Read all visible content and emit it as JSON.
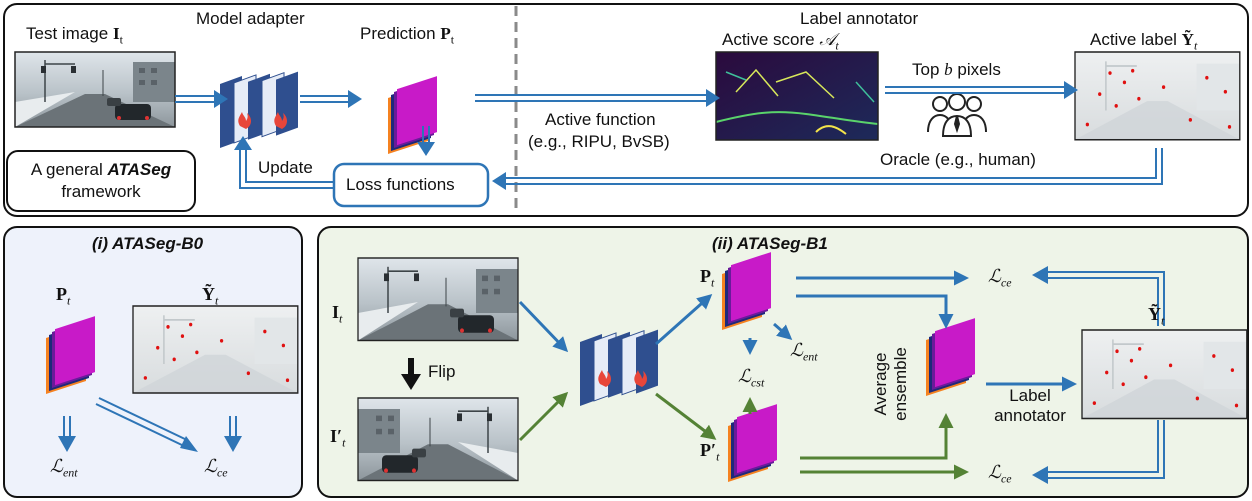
{
  "top": {
    "test_image": "Test image ",
    "test_image_sym": "I",
    "test_image_sub": "t",
    "model_adapter": "Model adapter",
    "prediction": "Prediction ",
    "prediction_sym": "P",
    "prediction_sub": "t",
    "label_annotator": "Label annotator",
    "active_score": "Active score ",
    "active_score_sym": "𝒜",
    "active_score_sub": "t",
    "active_label": "Active label ",
    "active_label_sym": "Ỹ",
    "active_label_sub": "t",
    "top_b": "Top ",
    "top_b_var": "b",
    "top_b_tail": " pixels",
    "active_function": "Active function",
    "active_function_eg": "(e.g., RIPU, BvSB)",
    "oracle": "Oracle (e.g., human)",
    "update": "Update",
    "loss_functions": "Loss functions",
    "general_line1": "A general ",
    "general_bold": "ATASeg",
    "general_line2": "framework"
  },
  "b0": {
    "title": "(i) ATASeg-B0",
    "P": "P",
    "P_sub": "t",
    "Y": "Ỹ",
    "Y_sub": "t",
    "L_ent": "ℒ",
    "L_ent_sub": "ent",
    "L_ce": "ℒ",
    "L_ce_sub": "ce"
  },
  "b1": {
    "title": "(ii) ATASeg-B1",
    "I": "I",
    "I_sub": "t",
    "I_prime": "I′",
    "I_prime_sub": "t",
    "flip": "Flip",
    "P": "P",
    "P_sub": "t",
    "P_prime": "P′",
    "P_prime_sub": "t",
    "L_ce_top": "ℒ",
    "L_ce_top_sub": "ce",
    "L_ent": "ℒ",
    "L_ent_sub": "ent",
    "L_cst": "ℒ",
    "L_cst_sub": "cst",
    "L_ce_bot": "ℒ",
    "L_ce_bot_sub": "ce",
    "avg_line1": "Average",
    "avg_line2": "ensemble",
    "label_annotator_1": "Label",
    "label_annotator_2": "annotator",
    "Y": "Ỹ",
    "Y_sub": "t"
  },
  "colors": {
    "blue_arrow": "#2E75B6",
    "green_arrow": "#548235",
    "b0_bg": "#EEF2FB",
    "b1_bg": "#EEF4E8",
    "pred_magenta": "#C81AC8",
    "model_blue": "#2F4F8F",
    "flame": "#E8463A"
  },
  "icons": [
    "flame-icon",
    "oracle-people-icon",
    "down-arrow-icon"
  ]
}
